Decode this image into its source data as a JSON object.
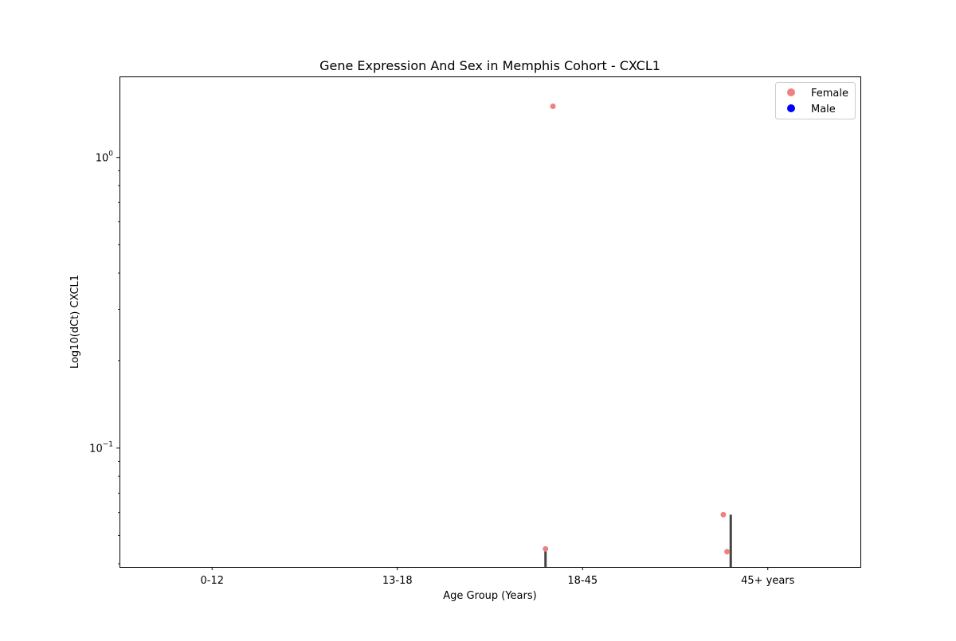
{
  "chart_data": {
    "type": "scatter",
    "title": "Gene Expression And Sex in Memphis Cohort - CXCL1",
    "xlabel": "Age Group (Years)",
    "ylabel": "Log10(dCt) CXCL1",
    "yscale": "log",
    "ylim": [
      0.039,
      1.9
    ],
    "categories": [
      "0-12",
      "13-18",
      "18-45",
      "45+ years"
    ],
    "y_ticks": [
      {
        "value": 0.1,
        "base": "10",
        "exp": "−1"
      },
      {
        "value": 1,
        "base": "10",
        "exp": "0"
      }
    ],
    "legend": {
      "position": "top-right",
      "entries": [
        {
          "label": "Female",
          "color": "#f08080"
        },
        {
          "label": "Male",
          "color": "#0000ff"
        }
      ]
    },
    "series": [
      {
        "name": "Female",
        "color": "#f08080",
        "points": [
          {
            "category": "18-45",
            "jitter": -0.2,
            "y": 0.045
          },
          {
            "category": "18-45",
            "jitter": -0.16,
            "y": 1.5
          },
          {
            "category": "45+ years",
            "jitter": -0.24,
            "y": 0.059
          },
          {
            "category": "45+ years",
            "jitter": -0.22,
            "y": 0.044
          }
        ]
      },
      {
        "name": "Male",
        "color": "#0000ff",
        "points": []
      }
    ],
    "error_bars": [
      {
        "category": "18-45",
        "offset": -0.2,
        "low": 0.039,
        "high": 0.045
      },
      {
        "category": "45+ years",
        "offset": -0.2,
        "low": 0.039,
        "high": 0.059
      }
    ],
    "grid": false
  }
}
